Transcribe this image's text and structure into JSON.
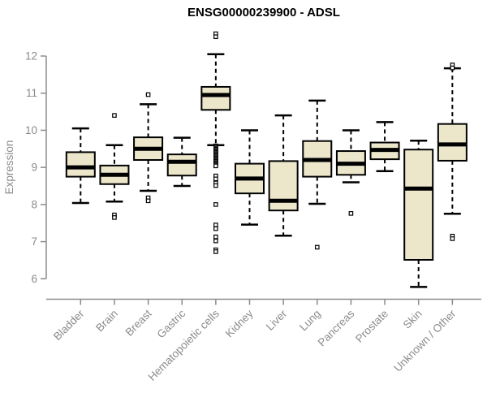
{
  "colors": {
    "background": "#ffffff",
    "box_fill": "#ECE6CB",
    "box_stroke": "#000000",
    "median": "#000000",
    "whisker": "#000000",
    "axis": "#8B8B8B",
    "tick_label": "#8B8B8B",
    "title": "#000000"
  },
  "chart_data": {
    "type": "boxplot",
    "title": "ENSG00000239900 - ADSL",
    "xlabel": "",
    "ylabel": "Expression",
    "ylim": [
      6,
      12
    ],
    "yticks": [
      6,
      7,
      8,
      9,
      10,
      11,
      12
    ],
    "grid": false,
    "legend": "none",
    "categories": [
      "Bladder",
      "Brain",
      "Breast",
      "Gastric",
      "Hematopoietic cells",
      "Kidney",
      "Liver",
      "Lung",
      "Pancreas",
      "Prostate",
      "Skin",
      "Unknown / Other"
    ],
    "series": [
      {
        "name": "Bladder",
        "whisker_low": 8.04,
        "q1": 8.75,
        "median": 9.0,
        "q3": 9.41,
        "whisker_high": 10.05,
        "outliers": []
      },
      {
        "name": "Brain",
        "whisker_low": 8.08,
        "q1": 8.55,
        "median": 8.8,
        "q3": 9.05,
        "whisker_high": 9.6,
        "outliers": [
          10.4,
          7.72,
          7.65
        ]
      },
      {
        "name": "Breast",
        "whisker_low": 8.37,
        "q1": 9.2,
        "median": 9.5,
        "q3": 9.81,
        "whisker_high": 10.7,
        "outliers": [
          10.96,
          8.18,
          8.1
        ]
      },
      {
        "name": "Gastric",
        "whisker_low": 8.5,
        "q1": 8.78,
        "median": 9.15,
        "q3": 9.35,
        "whisker_high": 9.8,
        "outliers": []
      },
      {
        "name": "Hematopoietic cells",
        "whisker_low": 9.6,
        "q1": 10.55,
        "median": 10.95,
        "q3": 11.17,
        "whisker_high": 12.05,
        "outliers": [
          12.6,
          12.52,
          9.58,
          9.55,
          9.52,
          9.49,
          9.46,
          9.43,
          9.4,
          9.37,
          9.34,
          9.31,
          9.28,
          9.25,
          9.22,
          9.19,
          9.16,
          9.13,
          9.1,
          9.07,
          9.04,
          8.77,
          8.69,
          8.58,
          8.51,
          8.0,
          7.45,
          7.35,
          7.13,
          7.02,
          6.78,
          6.73
        ]
      },
      {
        "name": "Kidney",
        "whisker_low": 7.46,
        "q1": 8.3,
        "median": 8.7,
        "q3": 9.1,
        "whisker_high": 10.0,
        "outliers": []
      },
      {
        "name": "Liver",
        "whisker_low": 7.16,
        "q1": 7.84,
        "median": 8.1,
        "q3": 9.17,
        "whisker_high": 10.4,
        "outliers": []
      },
      {
        "name": "Lung",
        "whisker_low": 8.02,
        "q1": 8.75,
        "median": 9.2,
        "q3": 9.71,
        "whisker_high": 10.8,
        "outliers": [
          6.85
        ]
      },
      {
        "name": "Pancreas",
        "whisker_low": 8.6,
        "q1": 8.8,
        "median": 9.1,
        "q3": 9.44,
        "whisker_high": 10.0,
        "outliers": [
          7.76
        ]
      },
      {
        "name": "Prostate",
        "whisker_low": 8.9,
        "q1": 9.22,
        "median": 9.47,
        "q3": 9.67,
        "whisker_high": 10.22,
        "outliers": []
      },
      {
        "name": "Skin",
        "whisker_low": 5.78,
        "q1": 6.51,
        "median": 8.43,
        "q3": 9.48,
        "whisker_high": 9.72,
        "outliers": []
      },
      {
        "name": "Unknown / Other",
        "whisker_low": 7.75,
        "q1": 9.18,
        "median": 9.62,
        "q3": 10.17,
        "whisker_high": 11.67,
        "outliers": [
          11.76,
          11.68,
          7.15,
          7.08
        ]
      }
    ]
  }
}
